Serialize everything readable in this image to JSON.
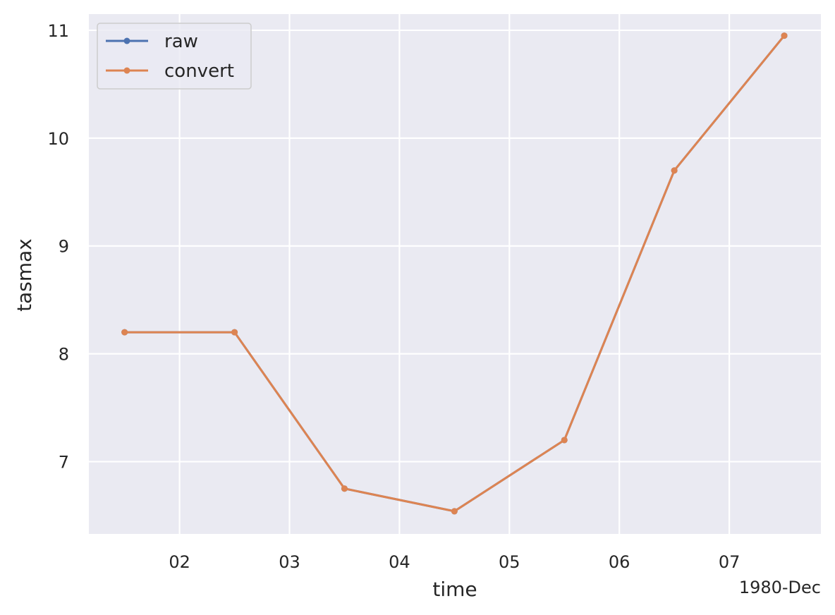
{
  "chart_data": {
    "type": "line",
    "title": "",
    "xlabel": "time",
    "ylabel": "tasmax",
    "x_offset_label": "1980-Dec",
    "x": [
      "1980-12-01T12:00",
      "1980-12-02T12:00",
      "1980-12-03T12:00",
      "1980-12-04T12:00",
      "1980-12-05T12:00",
      "1980-12-06T12:00",
      "1980-12-07T12:00"
    ],
    "xticks": [
      "1980-12-02",
      "1980-12-03",
      "1980-12-04",
      "1980-12-05",
      "1980-12-06",
      "1980-12-07"
    ],
    "xtick_labels": [
      "02",
      "03",
      "04",
      "05",
      "06",
      "07"
    ],
    "xlim": [
      "1980-12-01T04:12",
      "1980-12-07T20:00"
    ],
    "ylim": [
      6.33,
      11.15
    ],
    "yticks": [
      7,
      8,
      9,
      10,
      11
    ],
    "ytick_labels": [
      "7",
      "8",
      "9",
      "10",
      "11"
    ],
    "grid": true,
    "legend_position": "top-left",
    "series": [
      {
        "name": "raw",
        "color": "#4c72b0",
        "values": [
          8.2,
          8.2,
          6.75,
          6.54,
          7.2,
          9.7,
          10.95
        ]
      },
      {
        "name": "convert",
        "color": "#dd8452",
        "values": [
          8.2,
          8.2,
          6.75,
          6.54,
          7.2,
          9.7,
          10.95
        ]
      }
    ]
  }
}
